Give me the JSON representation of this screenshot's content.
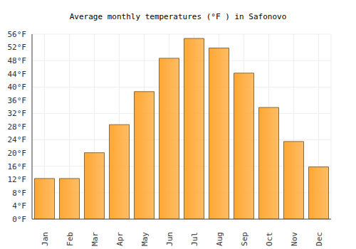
{
  "chart_data": {
    "type": "bar",
    "title": "Average monthly temperatures (°F ) in Safonovo",
    "categories": [
      "Jan",
      "Feb",
      "Mar",
      "Apr",
      "May",
      "Jun",
      "Jul",
      "Aug",
      "Sep",
      "Oct",
      "Nov",
      "Dec"
    ],
    "values": [
      12.3,
      12.3,
      20.1,
      28.6,
      38.6,
      48.7,
      54.7,
      51.8,
      44.2,
      33.8,
      23.5,
      15.8
    ],
    "color": "#ffa733",
    "ylim": [
      0,
      56
    ],
    "yticks": [
      {
        "value": 0,
        "label": "0°F"
      },
      {
        "value": 4,
        "label": "4°F"
      },
      {
        "value": 8,
        "label": "8°F"
      },
      {
        "value": 12,
        "label": "12°F"
      },
      {
        "value": 16,
        "label": "16°F"
      },
      {
        "value": 20,
        "label": "20°F"
      },
      {
        "value": 24,
        "label": "24°F"
      },
      {
        "value": 28,
        "label": "28°F"
      },
      {
        "value": 32,
        "label": "32°F"
      },
      {
        "value": 36,
        "label": "36°F"
      },
      {
        "value": 40,
        "label": "40°F"
      },
      {
        "value": 44,
        "label": "44°F"
      },
      {
        "value": 48,
        "label": "48°F"
      },
      {
        "value": 52,
        "label": "52°F"
      },
      {
        "value": 56,
        "label": "56°F"
      }
    ],
    "grid": true
  }
}
